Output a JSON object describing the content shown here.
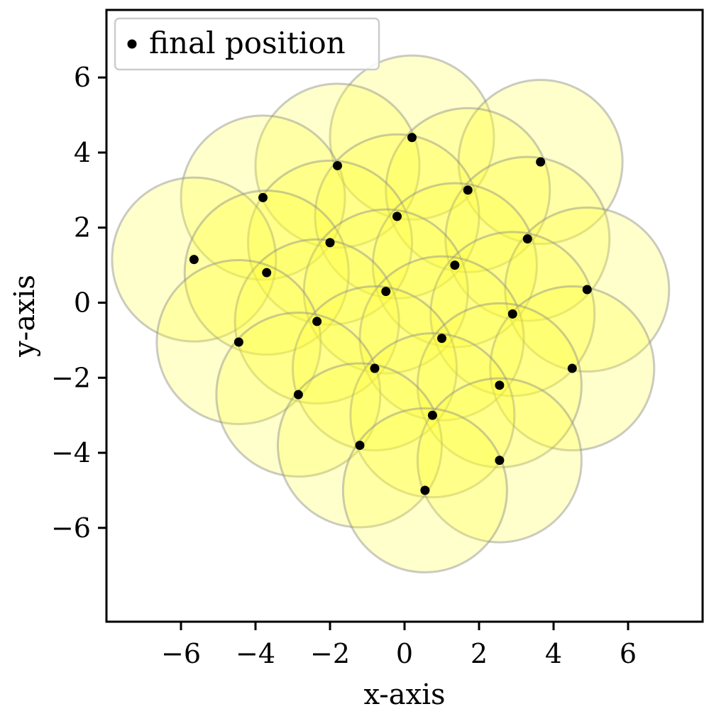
{
  "chart_data": {
    "type": "scatter",
    "xlabel": "x-axis",
    "ylabel": "y-axis",
    "xlim": [
      -8,
      8
    ],
    "ylim": [
      -8.5,
      7.8
    ],
    "xticks": [
      -6,
      -4,
      -2,
      0,
      2,
      4,
      6
    ],
    "yticks": [
      6,
      4,
      2,
      0,
      -2,
      -4,
      -6
    ],
    "xtick_labels": [
      "−6",
      "−4",
      "−2",
      "0",
      "2",
      "4",
      "6"
    ],
    "ytick_labels": [
      "6",
      "4",
      "2",
      "0",
      "−2",
      "−4",
      "−6"
    ],
    "circle_radius": 2.2,
    "legend": {
      "label": "final position",
      "placement": "upper-left"
    },
    "grid": false,
    "colors": {
      "circle_fill": "#ffff33",
      "circle_fill_opacity": 0.25,
      "circle_edge": "#8c8c8c",
      "point": "#000000"
    },
    "series": [
      {
        "name": "final position",
        "points": [
          [
            0.2,
            4.4
          ],
          [
            -1.8,
            3.65
          ],
          [
            3.65,
            3.75
          ],
          [
            -3.8,
            2.8
          ],
          [
            1.7,
            3.0
          ],
          [
            -0.2,
            2.3
          ],
          [
            3.3,
            1.7
          ],
          [
            -2.0,
            1.6
          ],
          [
            -5.65,
            1.15
          ],
          [
            1.35,
            1.0
          ],
          [
            -3.7,
            0.8
          ],
          [
            4.9,
            0.35
          ],
          [
            -0.5,
            0.3
          ],
          [
            2.9,
            -0.3
          ],
          [
            -2.35,
            -0.5
          ],
          [
            1.0,
            -0.95
          ],
          [
            -4.45,
            -1.05
          ],
          [
            -0.8,
            -1.75
          ],
          [
            4.5,
            -1.75
          ],
          [
            2.55,
            -2.2
          ],
          [
            -2.85,
            -2.45
          ],
          [
            0.75,
            -3.0
          ],
          [
            -1.2,
            -3.8
          ],
          [
            2.55,
            -4.2
          ],
          [
            0.55,
            -5.0
          ]
        ]
      }
    ]
  }
}
